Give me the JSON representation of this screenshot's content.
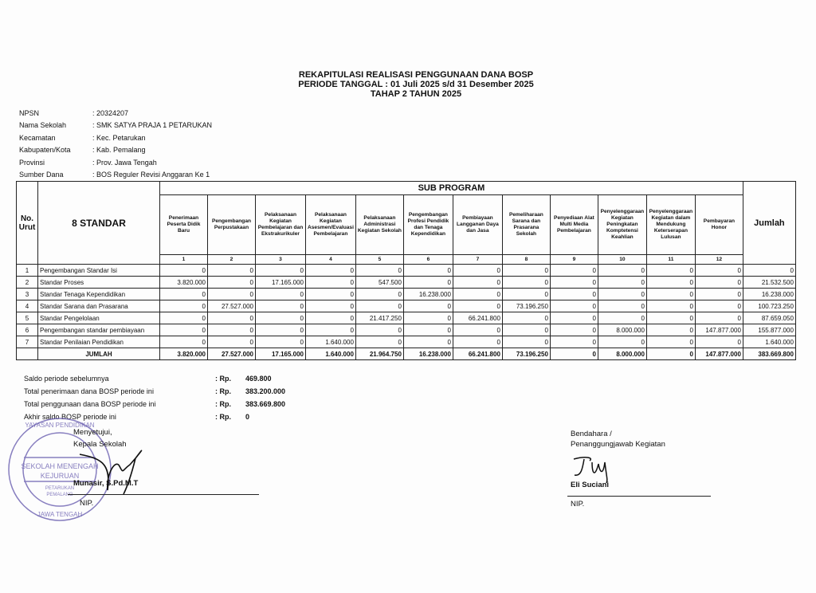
{
  "header": {
    "title": "REKAPITULASI REALISASI PENGGUNAAN DANA BOSP",
    "period": "PERIODE TANGGAL : 01 Juli 2025 s/d 31 Desember 2025",
    "stage": "TAHAP 2 TAHUN 2025"
  },
  "info": [
    {
      "label": "NPSN",
      "value": ": 20324207"
    },
    {
      "label": "Nama Sekolah",
      "value": ": SMK SATYA PRAJA 1 PETARUKAN"
    },
    {
      "label": "Kecamatan",
      "value": ": Kec. Petarukan"
    },
    {
      "label": "Kabupaten/Kota",
      "value": ": Kab. Pemalang"
    },
    {
      "label": "Provinsi",
      "value": ": Prov. Jawa Tengah"
    },
    {
      "label": "Sumber Dana",
      "value": ": BOS Reguler Revisi Anggaran Ke 1"
    }
  ],
  "table": {
    "no_header": "No. Urut",
    "standar_header": "8 STANDAR",
    "sub_program": "SUB PROGRAM",
    "jumlah_header": "Jumlah",
    "columns": [
      {
        "label": "Penerimaan Peserta Didik Baru",
        "num": "1"
      },
      {
        "label": "Pengembangan Perpustakaan",
        "num": "2"
      },
      {
        "label": "Pelaksanaan Kegiatan Pembelajaran dan Ekstrakurikuler",
        "num": "3"
      },
      {
        "label": "Pelaksanaan Kegiatan Asesmen/Evaluasi Pembelajaran",
        "num": "4"
      },
      {
        "label": "Pelaksanaan Administrasi Kegiatan Sekolah",
        "num": "5"
      },
      {
        "label": "Pengembangan Profesi Pendidik dan Tenaga Kependidikan",
        "num": "6"
      },
      {
        "label": "Pembiayaan Langganan Daya dan Jasa",
        "num": "7"
      },
      {
        "label": "Pemeliharaan Sarana dan Prasarana Sekolah",
        "num": "8"
      },
      {
        "label": "Penyediaan Alat Multi Media Pembelajaran",
        "num": "9"
      },
      {
        "label": "Penyelenggaraan Kegiatan Peningkatan Komptetensi Keahlian",
        "num": "10"
      },
      {
        "label": "Penyelenggaraan Kegiatan dalam Mendukung Keterserapan Lulusan",
        "num": "11"
      },
      {
        "label": "Pembayaran Honor",
        "num": "12"
      }
    ],
    "rows": [
      {
        "no": "1",
        "standar": "Pengembangan Standar Isi",
        "values": [
          "0",
          "0",
          "0",
          "0",
          "0",
          "0",
          "0",
          "0",
          "0",
          "0",
          "0",
          "0"
        ],
        "jumlah": "0"
      },
      {
        "no": "2",
        "standar": "Standar Proses",
        "values": [
          "3.820.000",
          "0",
          "17.165.000",
          "0",
          "547.500",
          "0",
          "0",
          "0",
          "0",
          "0",
          "0",
          "0"
        ],
        "jumlah": "21.532.500"
      },
      {
        "no": "3",
        "standar": "Standar Tenaga Kependidikan",
        "values": [
          "0",
          "0",
          "0",
          "0",
          "0",
          "16.238.000",
          "0",
          "0",
          "0",
          "0",
          "0",
          "0"
        ],
        "jumlah": "16.238.000"
      },
      {
        "no": "4",
        "standar": "Standar Sarana dan Prasarana",
        "values": [
          "0",
          "27.527.000",
          "0",
          "0",
          "0",
          "0",
          "0",
          "73.196.250",
          "0",
          "0",
          "0",
          "0"
        ],
        "jumlah": "100.723.250"
      },
      {
        "no": "5",
        "standar": "Standar Pengelolaan",
        "values": [
          "0",
          "0",
          "0",
          "0",
          "21.417.250",
          "0",
          "66.241.800",
          "0",
          "0",
          "0",
          "0",
          "0"
        ],
        "jumlah": "87.659.050"
      },
      {
        "no": "6",
        "standar": "Pengembangan standar pembiayaan",
        "values": [
          "0",
          "0",
          "0",
          "0",
          "0",
          "0",
          "0",
          "0",
          "0",
          "8.000.000",
          "0",
          "147.877.000"
        ],
        "jumlah": "155.877.000"
      },
      {
        "no": "7",
        "standar": "Standar Penilaian Pendidikan",
        "values": [
          "0",
          "0",
          "0",
          "1.640.000",
          "0",
          "0",
          "0",
          "0",
          "0",
          "0",
          "0",
          "0"
        ],
        "jumlah": "1.640.000"
      }
    ],
    "total": {
      "label": "JUMLAH",
      "values": [
        "3.820.000",
        "27.527.000",
        "17.165.000",
        "1.640.000",
        "21.964.750",
        "16.238.000",
        "66.241.800",
        "73.196.250",
        "0",
        "8.000.000",
        "0",
        "147.877.000"
      ],
      "jumlah": "383.669.800"
    }
  },
  "summary": [
    {
      "label": "Saldo periode sebelumnya",
      "rp": ": Rp.",
      "value": "469.800"
    },
    {
      "label": "Total penerimaan dana BOSP periode ini",
      "rp": ": Rp.",
      "value": "383.200.000"
    },
    {
      "label": "Total penggunaan dana BOSP periode ini",
      "rp": ": Rp.",
      "value": "383.669.800"
    },
    {
      "label": "Akhir saldo BOSP periode ini",
      "rp": ": Rp.",
      "value": "0"
    }
  ],
  "left_sign": {
    "approve": "Menyetujui,",
    "role": "Kepala Sekolah",
    "name": "Munasir, S.Pd.M.T",
    "nip": "NIP."
  },
  "right_sign": {
    "role1": "Bendahara /",
    "role2": "Penanggungjawab Kegiatan",
    "name": "Eli Suciani",
    "nip": "NIP."
  },
  "stamp": {
    "text": "YAYASAN PENDIDIKAN SMK SATYA PRAJA SEKOLAH MENENGAH KEJURUAN PETARUKAN PEMALANG JAWA TENGAH",
    "color": "#6a5fb0"
  }
}
